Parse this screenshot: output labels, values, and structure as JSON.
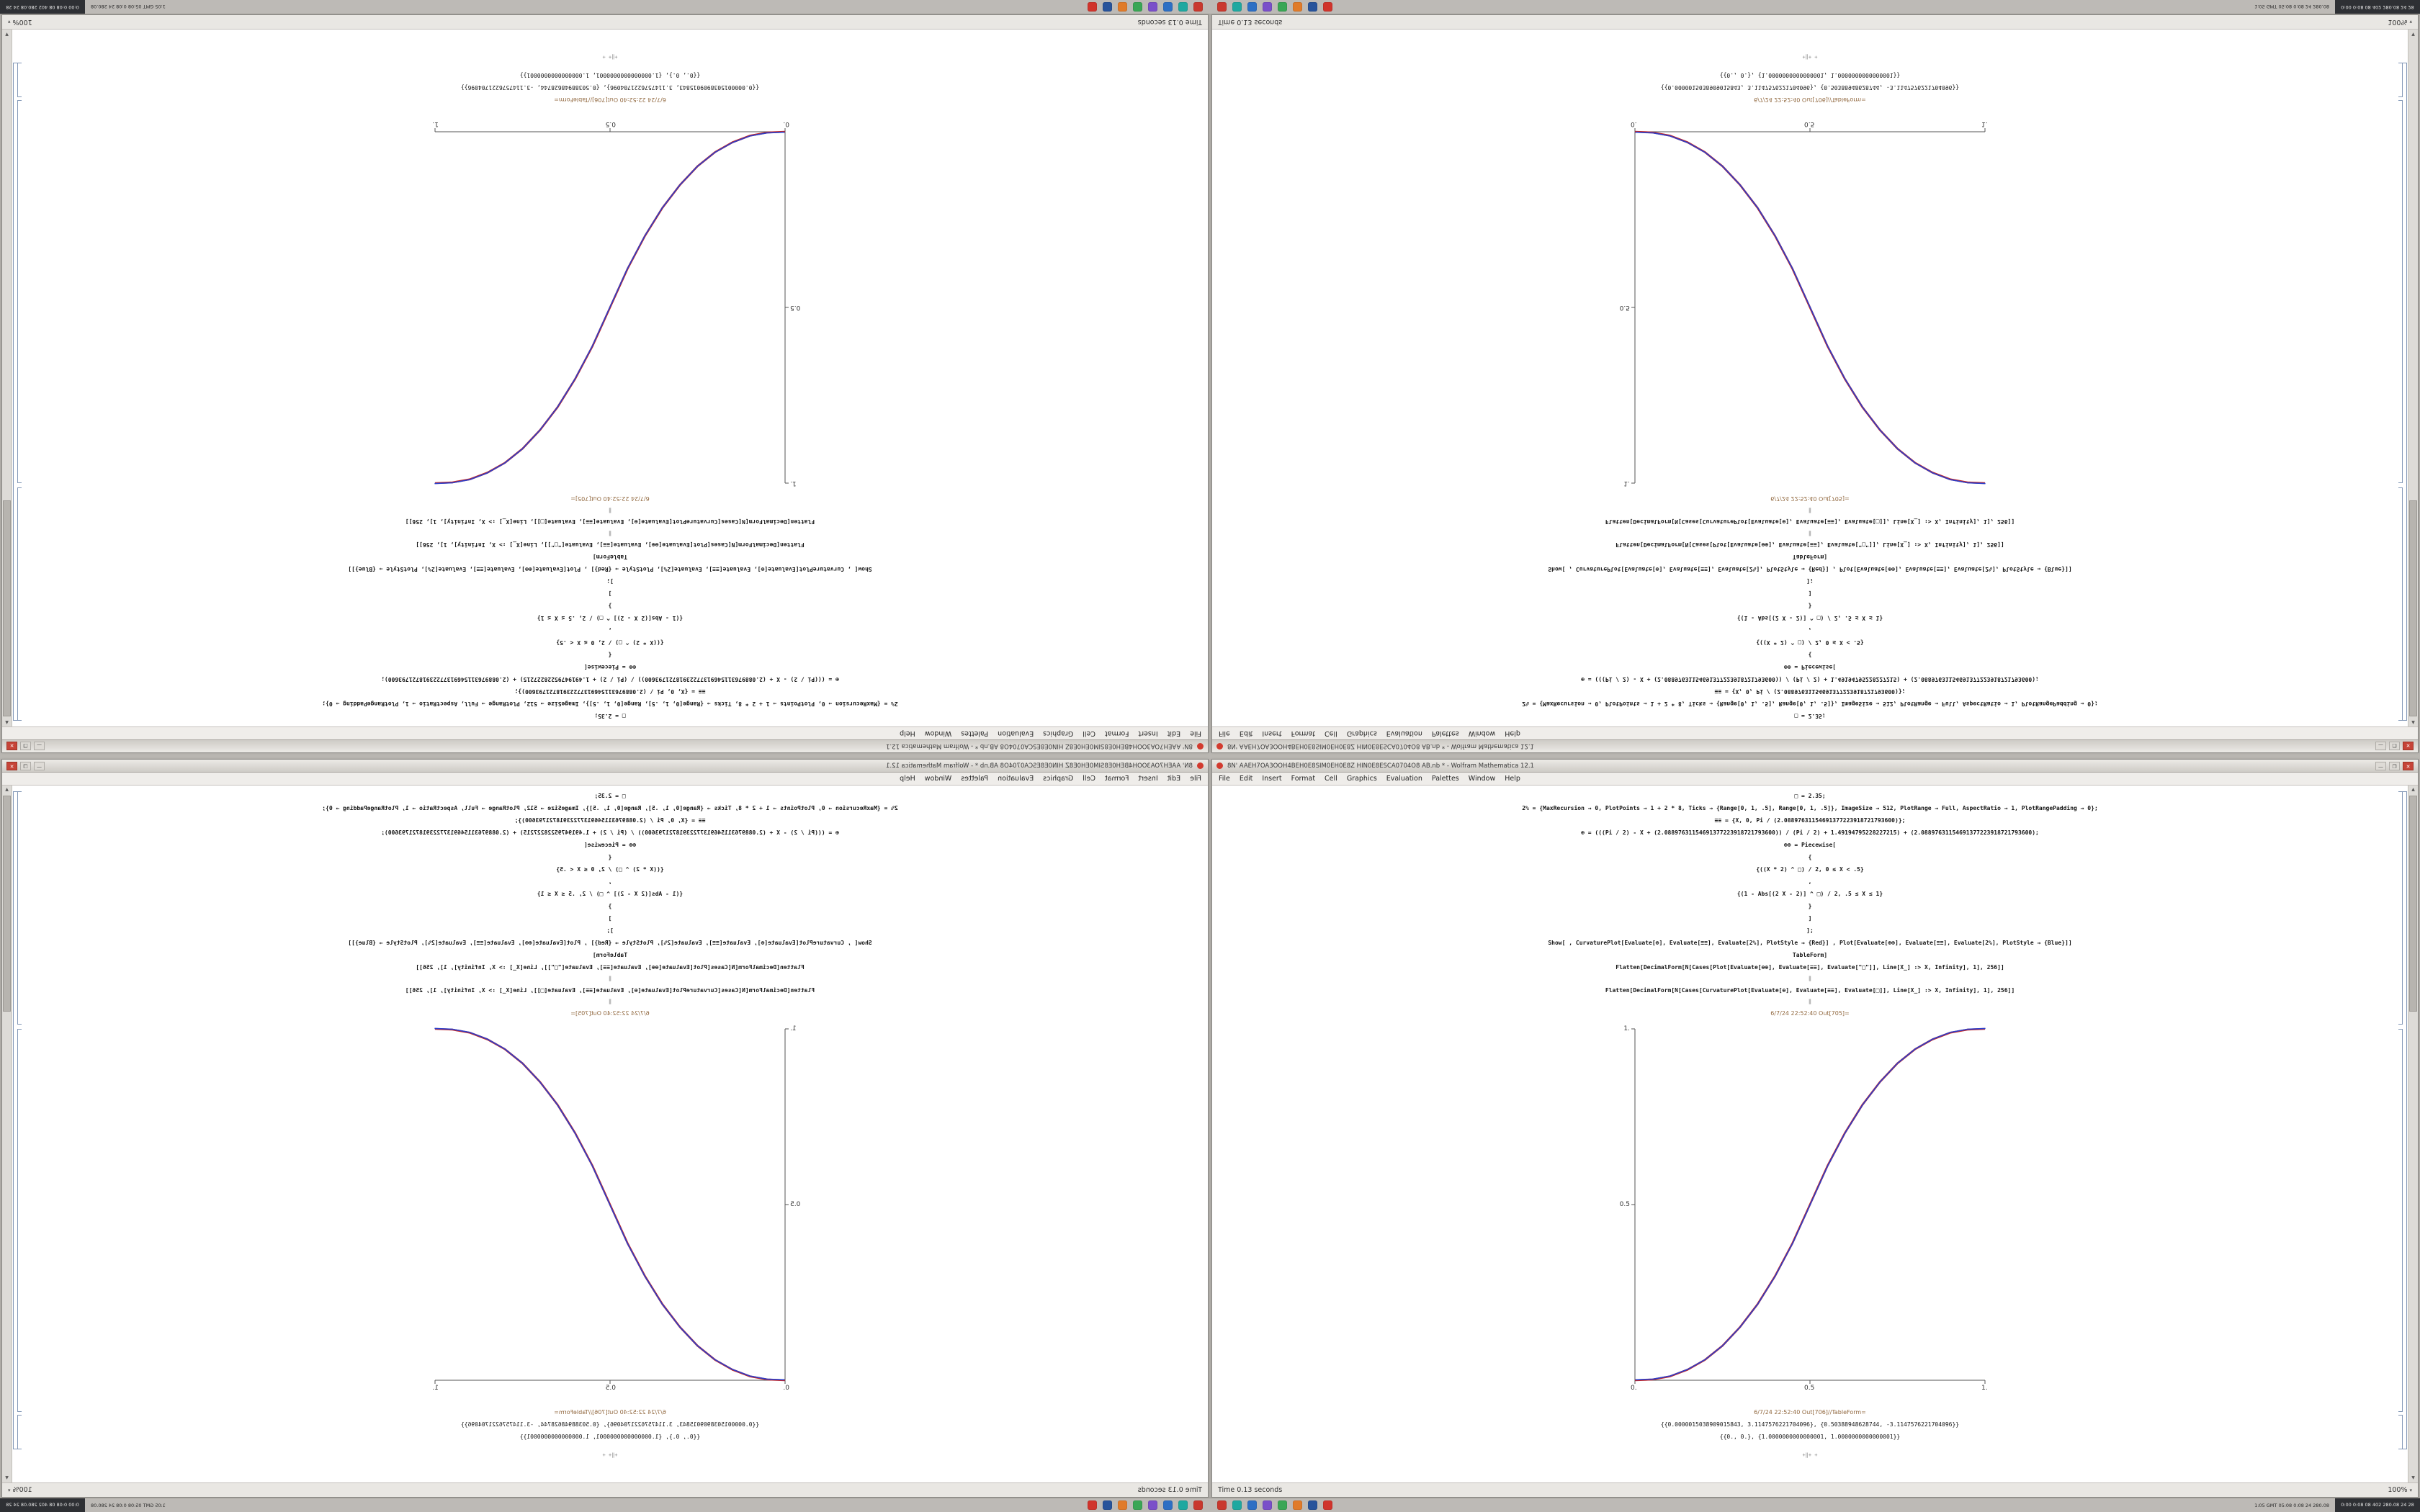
{
  "app": {
    "title": "8N' AAEH7OA3OOH4BEH0E8SIM0EH0E8Z HIN0E8ESCA0704O8 AB.nb * - Wolfram Mathematica 12.1",
    "menu": [
      "File",
      "Edit",
      "Insert",
      "Format",
      "Cell",
      "Graphics",
      "Evaluation",
      "Palettes",
      "Window",
      "Help"
    ],
    "buttons": {
      "minimize": "—",
      "maximize": "❐",
      "close": "✕"
    },
    "status_left": "Time 0.13 seconds",
    "zoom": "100%"
  },
  "icons": {
    "scroll_up": "▲",
    "scroll_down": "▼",
    "zoom_caret": "▾",
    "window_dot_color": "#d23b2f"
  },
  "notebook": {
    "lines": [
      {
        "kind": "code",
        "text": "□ = 2.35;"
      },
      {
        "kind": "code",
        "text": "2% = {MaxRecursion → 0, PlotPoints → 1 + 2 * 8, Ticks → {Range[0, 1, .5], Range[0, 1, .5]}, ImageSize → 512, PlotRange → Full, AspectRatio → 1, PlotRangePadding → 0};"
      },
      {
        "kind": "code",
        "text": "≡≡ = {X, 0, Pi / (2.08897631154691377223918721793600)};"
      },
      {
        "kind": "code",
        "text": "⊕ = (((Pi / 2) - X + (2.08897631154691377223918721793600)) / (Pi / 2) + 1.49194795228227215) + (2.08897631154691377223918721793600);"
      },
      {
        "kind": "code",
        "text": "⊕⊕ = Piecewise["
      },
      {
        "kind": "code",
        "text": "{"
      },
      {
        "kind": "code",
        "text": "{((X * 2) ^ □) / 2, 0 ≤ X < .5}"
      },
      {
        "kind": "code",
        "text": ","
      },
      {
        "kind": "code",
        "text": "{(1 - Abs[(2 X - 2)] ^ □) / 2, .5 ≤ X ≤ 1}"
      },
      {
        "kind": "code",
        "text": "}"
      },
      {
        "kind": "code",
        "text": "]"
      },
      {
        "kind": "code",
        "text": "];"
      },
      {
        "kind": "code",
        "text": "Show[ , CurvaturePlot[Evaluate[⊕], Evaluate[≡≡], Evaluate[2%], PlotStyle → {Red}] , Plot[Evaluate[⊕⊕], Evaluate[≡≡], Evaluate[2%], PlotStyle → {Blue}]]"
      },
      {
        "kind": "code",
        "text": "TableForm]"
      },
      {
        "kind": "code",
        "text": "Flatten[DecimalForm[N[Cases[Plot[Evaluate[⊕⊕], Evaluate[≡≡], Evaluate[\"□\"]], Line[X_] :> X, Infinity], 1], 256]]"
      },
      {
        "kind": "sep",
        "text": "‖"
      },
      {
        "kind": "code",
        "text": "Flatten[DecimalForm[N[Cases[CurvaturePlot[Evaluate[⊕], Evaluate[≡≡], Evaluate[□]], Line[X_] :> X, Infinity], 1], 256]]"
      },
      {
        "kind": "sep",
        "text": "‖"
      },
      {
        "kind": "label",
        "text": "6/7/24 22:52:40 Out[705]="
      }
    ],
    "table_label": "6/7/24 22:52:40 Out[706]//TableForm=",
    "outputs": [
      "{{0.0000015038909015843, 3.1147576221704096}, {0.50388948628744, -3.1147576221704096}}",
      "{{0., 0.}, {1.0000000000000001, 1.0000000000000001}}"
    ],
    "footer_marks": "+‖+   +"
  },
  "chart_data": {
    "type": "line",
    "title": "Out[705] smoothstep curve, exponent 2.35",
    "xlim": [
      0,
      1
    ],
    "ylim": [
      0,
      1
    ],
    "x_ticks": [
      "0.",
      "0.5",
      "1."
    ],
    "y_ticks": [
      "1.",
      "0.5"
    ],
    "grid": false,
    "legend": "none",
    "series": [
      {
        "name": "CurvaturePlot (Red)",
        "color": "#c32525"
      },
      {
        "name": "Plot (Blue)",
        "color": "#2a3fcc"
      }
    ],
    "points": [
      [
        0,
        0
      ],
      [
        0.05,
        0.002
      ],
      [
        0.1,
        0.011
      ],
      [
        0.15,
        0.03
      ],
      [
        0.2,
        0.058
      ],
      [
        0.25,
        0.098
      ],
      [
        0.3,
        0.151
      ],
      [
        0.35,
        0.216
      ],
      [
        0.4,
        0.296
      ],
      [
        0.45,
        0.39
      ],
      [
        0.5,
        0.5
      ],
      [
        0.55,
        0.61
      ],
      [
        0.6,
        0.704
      ],
      [
        0.65,
        0.784
      ],
      [
        0.7,
        0.849
      ],
      [
        0.75,
        0.902
      ],
      [
        0.8,
        0.942
      ],
      [
        0.85,
        0.97
      ],
      [
        0.9,
        0.989
      ],
      [
        0.95,
        0.998
      ],
      [
        1,
        1
      ]
    ]
  },
  "taskbar": {
    "dock": [
      {
        "name": "dock-app-red",
        "color": "#c9382e"
      },
      {
        "name": "dock-app-teal",
        "color": "#1fa8a0"
      },
      {
        "name": "dock-app-blue",
        "color": "#2d6fc4"
      },
      {
        "name": "dock-app-violet",
        "color": "#7a4fc9"
      },
      {
        "name": "dock-app-green",
        "color": "#3aa655"
      },
      {
        "name": "dock-app-orange",
        "color": "#e07b2a"
      },
      {
        "name": "dock-app-navy",
        "color": "#27539b"
      },
      {
        "name": "dock-app-scarlet",
        "color": "#d0342c"
      }
    ],
    "tray_text": "1:05 GMT 05:08 0:08 24 280.08",
    "clock_text": "0:00 0:08 08 402 280.08 24 28"
  }
}
